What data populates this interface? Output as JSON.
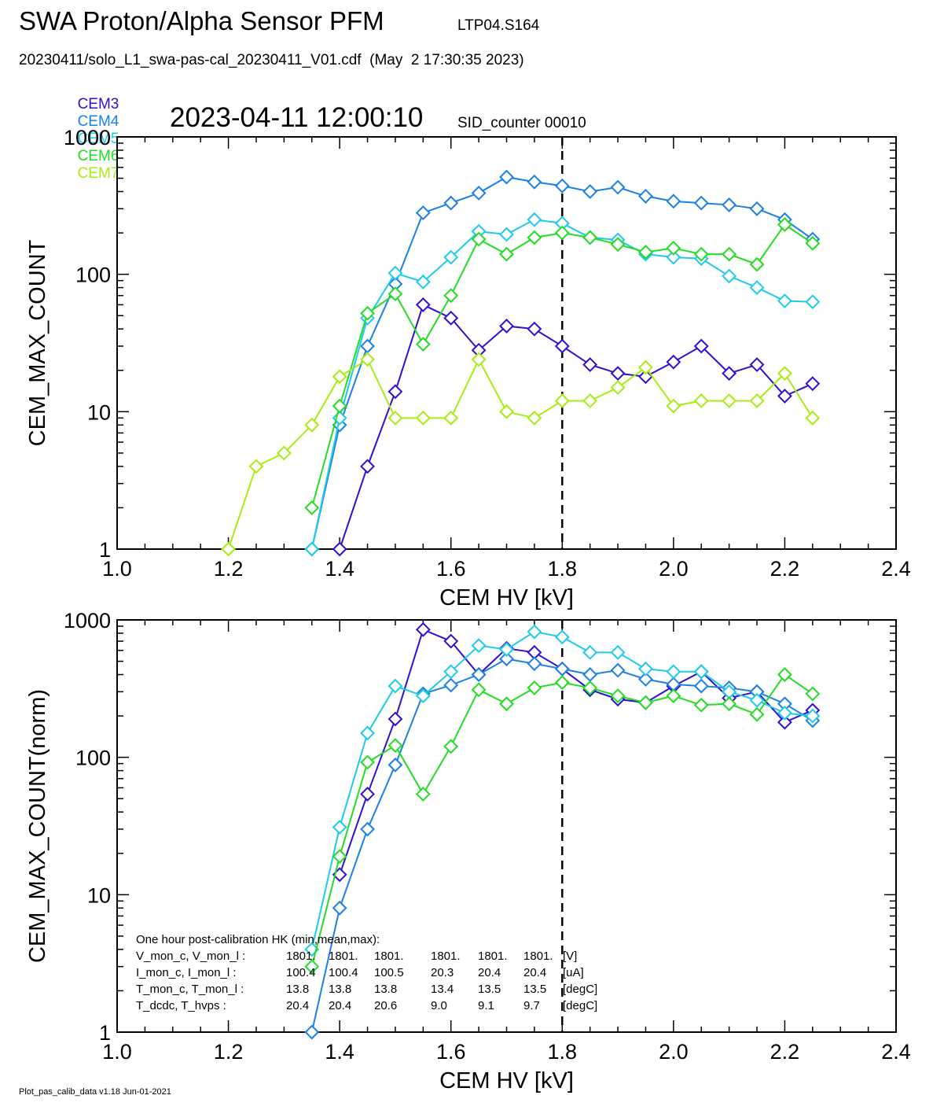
{
  "header": {
    "title": "SWA Proton/Alpha Sensor PFM",
    "run_id": "LTP04.S164",
    "file_line": "20230411/solo_L1_swa-pas-cal_20230411_V01.cdf  (May  2 17:30:35 2023)",
    "timestamp": "2023-04-11 12:00:10",
    "sid": "SID_counter 00010"
  },
  "legend": [
    {
      "name": "CEM3",
      "color": "#2d10d2"
    },
    {
      "name": "CEM4",
      "color": "#1a80e6"
    },
    {
      "name": "CEM5",
      "color": "#1ccbea"
    },
    {
      "name": "CEM6",
      "color": "#22dd22"
    },
    {
      "name": "CEM7",
      "color": "#a6ee11"
    }
  ],
  "footer": "Plot_pas_calib_data v1.18 Jun-01-2021",
  "chart_data": [
    {
      "type": "line",
      "xlabel": "CEM HV [kV]",
      "ylabel": "CEM_MAX_COUNT",
      "xlim": [
        1.0,
        2.4
      ],
      "ylim": [
        1,
        1000
      ],
      "yscale": "log",
      "xticks": [
        "1.0",
        "1.2",
        "1.4",
        "1.6",
        "1.8",
        "2.0",
        "2.2",
        "2.4"
      ],
      "yticks": [
        "1",
        "10",
        "100",
        "1000"
      ],
      "vline_x": 1.8,
      "x": [
        1.2,
        1.25,
        1.3,
        1.35,
        1.4,
        1.45,
        1.5,
        1.55,
        1.6,
        1.65,
        1.7,
        1.75,
        1.8,
        1.85,
        1.9,
        1.95,
        2.0,
        2.05,
        2.1,
        2.15,
        2.2,
        2.25
      ],
      "series": [
        {
          "name": "CEM3",
          "color": "#2d10d2",
          "values": [
            null,
            null,
            null,
            null,
            1,
            4,
            14,
            60,
            48,
            28,
            42,
            40,
            30,
            22,
            19,
            18,
            23,
            30,
            19,
            22,
            13,
            16
          ]
        },
        {
          "name": "CEM4",
          "color": "#1a80e6",
          "values": [
            null,
            null,
            null,
            1,
            8,
            30,
            85,
            280,
            330,
            390,
            510,
            470,
            440,
            400,
            430,
            370,
            340,
            330,
            320,
            300,
            250,
            180
          ]
        },
        {
          "name": "CEM5",
          "color": "#1ccbea",
          "values": [
            null,
            null,
            null,
            1,
            9,
            48,
            102,
            88,
            133,
            205,
            195,
            250,
            235,
            185,
            178,
            140,
            133,
            130,
            97,
            80,
            64,
            63
          ]
        },
        {
          "name": "CEM6",
          "color": "#22dd22",
          "values": [
            null,
            null,
            null,
            2,
            11,
            52,
            72,
            31,
            70,
            180,
            140,
            185,
            200,
            185,
            165,
            145,
            155,
            140,
            140,
            118,
            230,
            168
          ]
        },
        {
          "name": "CEM7",
          "color": "#a6ee11",
          "values": [
            1,
            4,
            5,
            8,
            18,
            24,
            9,
            9,
            9,
            24,
            10,
            9,
            12,
            12,
            15,
            21,
            11,
            12,
            12,
            12,
            19,
            9
          ]
        }
      ]
    },
    {
      "type": "line",
      "xlabel": "CEM HV [kV]",
      "ylabel": "CEM_MAX_COUNT(norm)",
      "xlim": [
        1.0,
        2.4
      ],
      "ylim": [
        1,
        1000
      ],
      "yscale": "log",
      "xticks": [
        "1.0",
        "1.2",
        "1.4",
        "1.6",
        "1.8",
        "2.0",
        "2.2",
        "2.4"
      ],
      "yticks": [
        "1",
        "10",
        "100",
        "1000"
      ],
      "vline_x": 1.8,
      "x": [
        1.35,
        1.4,
        1.45,
        1.5,
        1.55,
        1.6,
        1.65,
        1.7,
        1.75,
        1.8,
        1.85,
        1.9,
        1.95,
        2.0,
        2.05,
        2.1,
        2.15,
        2.2,
        2.25
      ],
      "series": [
        {
          "name": "CEM3",
          "color": "#2d10d2",
          "values": [
            null,
            14,
            54,
            190,
            850,
            700,
            400,
            620,
            580,
            440,
            310,
            265,
            250,
            330,
            420,
            270,
            300,
            180,
            220
          ]
        },
        {
          "name": "CEM4",
          "color": "#1a80e6",
          "values": [
            1,
            8,
            30,
            88,
            290,
            335,
            400,
            520,
            480,
            440,
            400,
            430,
            370,
            340,
            330,
            320,
            300,
            245,
            185
          ]
        },
        {
          "name": "CEM5",
          "color": "#1ccbea",
          "values": [
            4,
            31,
            150,
            330,
            280,
            420,
            650,
            610,
            820,
            750,
            580,
            580,
            440,
            420,
            420,
            300,
            260,
            210,
            200
          ]
        },
        {
          "name": "CEM6",
          "color": "#22dd22",
          "values": [
            3,
            19,
            92,
            122,
            54,
            120,
            310,
            245,
            320,
            350,
            320,
            280,
            250,
            280,
            240,
            245,
            205,
            400,
            290
          ]
        }
      ],
      "annotation": {
        "heading": "One hour post-calibration HK (min,mean,max):",
        "rows": [
          {
            "label": "V_mon_c, V_mon_l :",
            "v1": "1801.",
            "v2": "1801.",
            "v3": "1801.",
            "v4": "1801.",
            "v5": "1801.",
            "v6": "1801.",
            "unit": "[V]"
          },
          {
            "label": "I_mon_c,  I_mon_l :",
            "v1": "100.4",
            "v2": "100.4",
            "v3": "100.5",
            "v4": "20.3",
            "v5": "20.4",
            "v6": "20.4",
            "unit": "[uA]"
          },
          {
            "label": "T_mon_c, T_mon_l :",
            "v1": "13.8",
            "v2": "13.8",
            "v3": "13.8",
            "v4": "13.4",
            "v5": "13.5",
            "v6": "13.5",
            "unit": "[degC]"
          },
          {
            "label": "T_dcdc,    T_hvps :",
            "v1": "20.4",
            "v2": "20.4",
            "v3": "20.6",
            "v4": "9.0",
            "v5": "9.1",
            "v6": "9.7",
            "unit": "[degC]"
          }
        ]
      }
    }
  ]
}
